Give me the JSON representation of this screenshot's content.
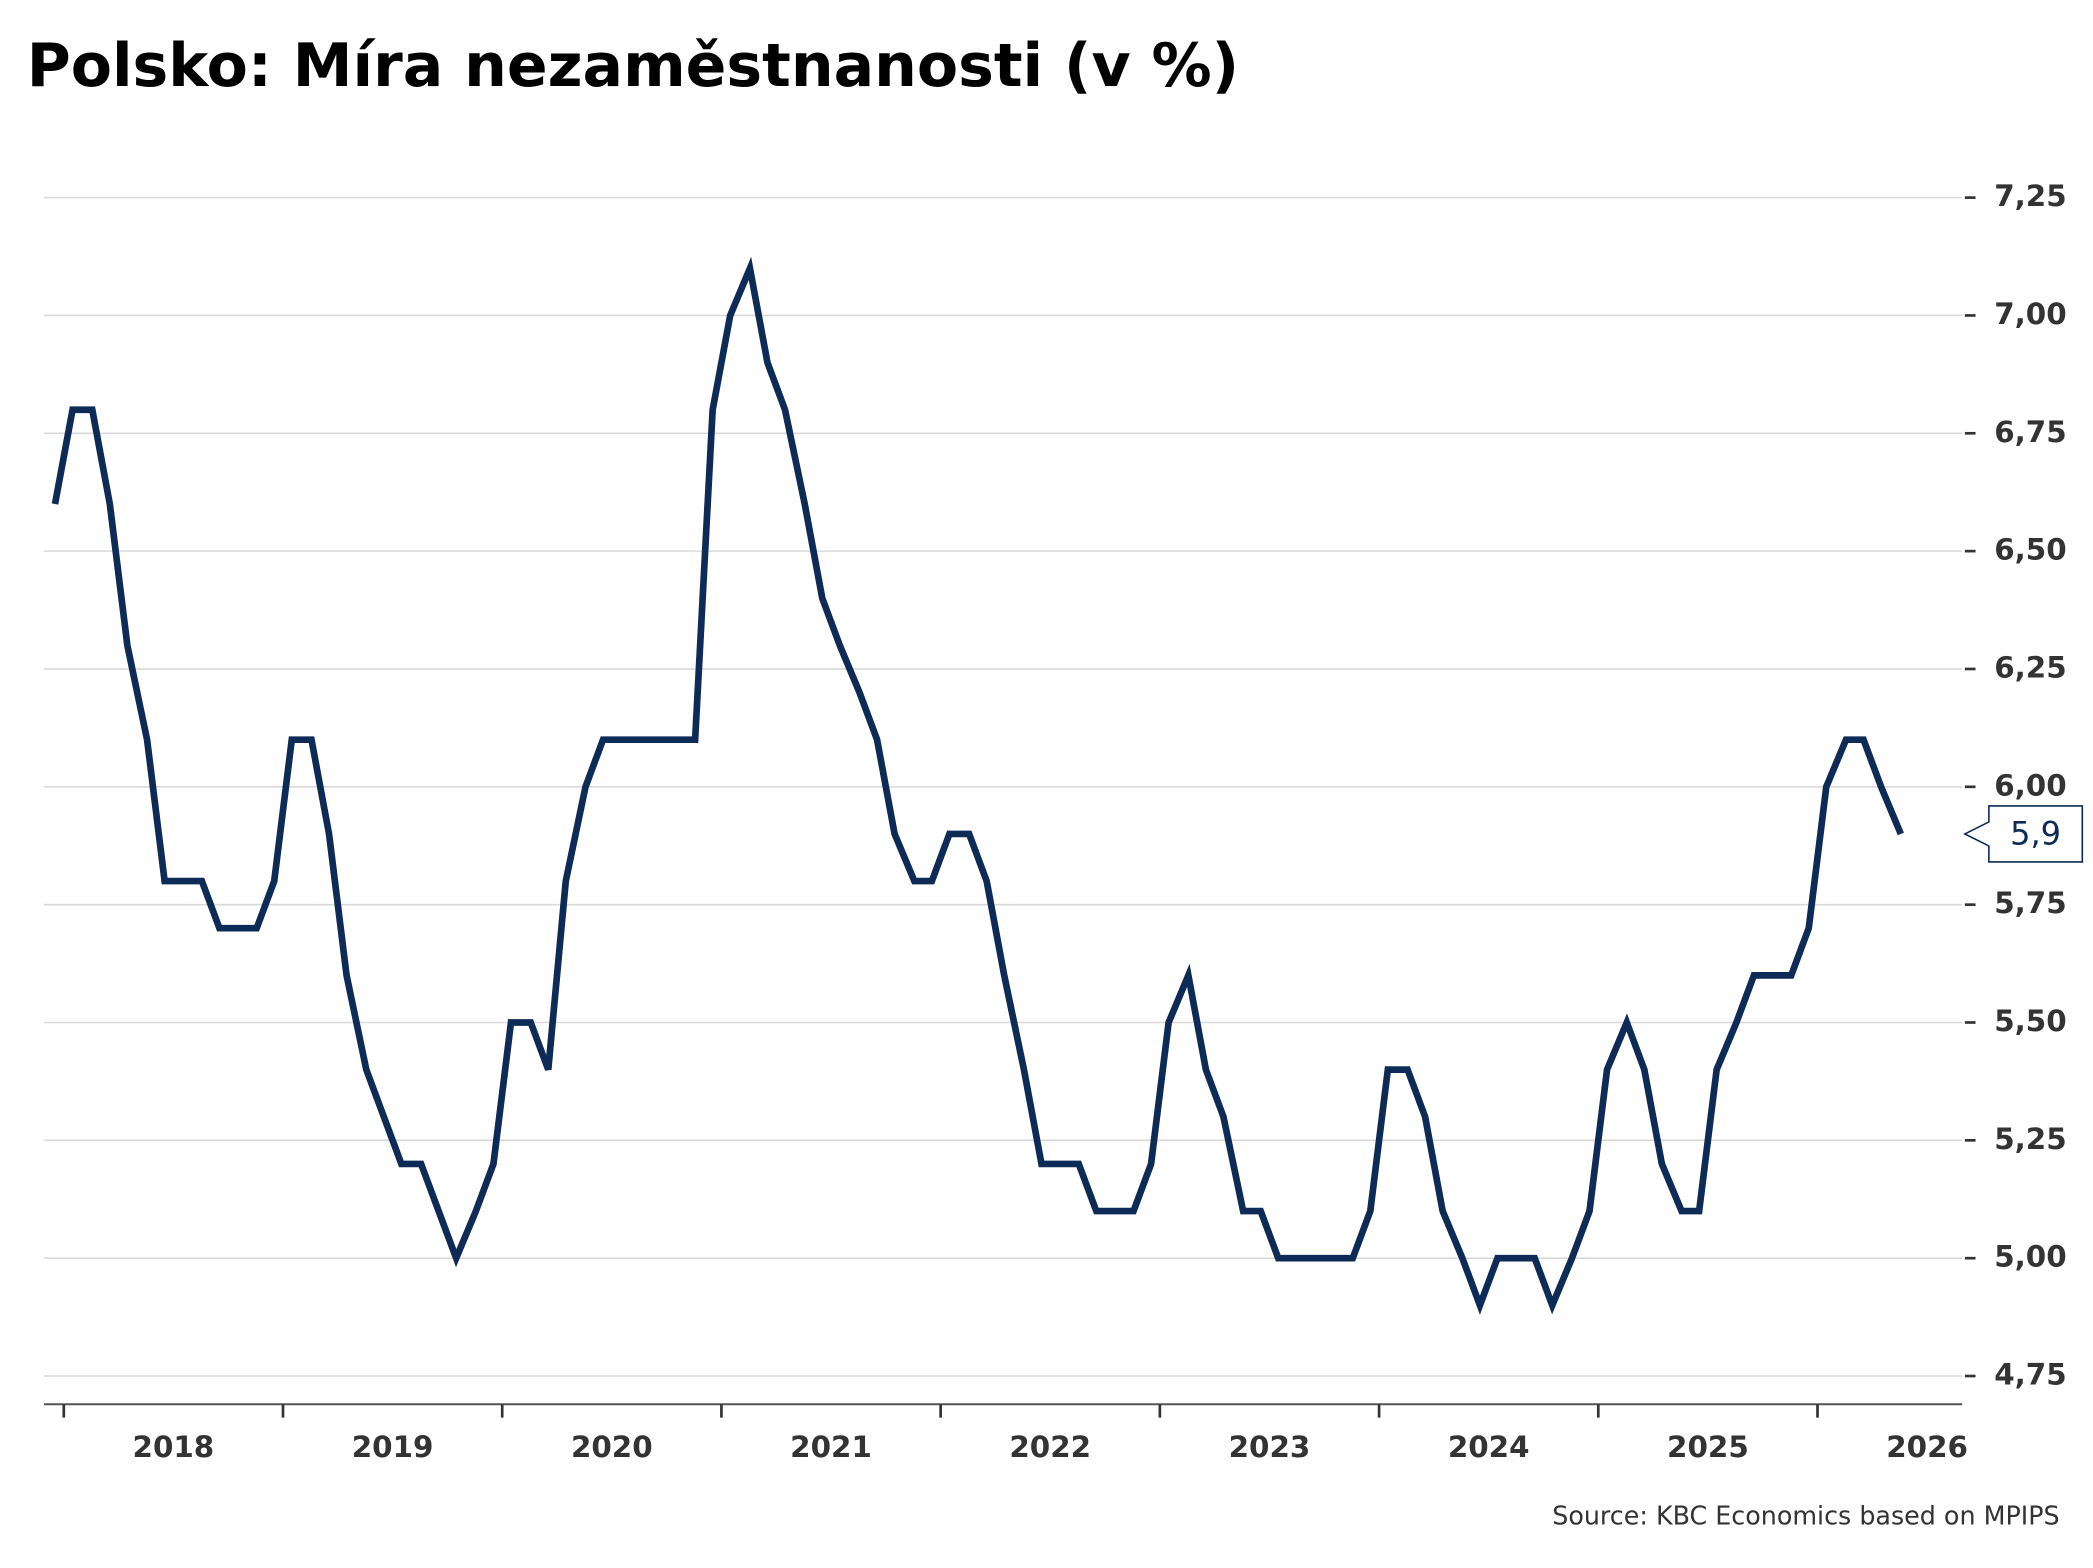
{
  "chart_data": {
    "type": "line",
    "title": "Polsko: Míra nezaměstnanosti (v %)",
    "source": "Source: KBC Economics based on MPIPS",
    "x": [
      2017.96,
      2018.04,
      2018.13,
      2018.21,
      2018.29,
      2018.38,
      2018.46,
      2018.54,
      2018.63,
      2018.71,
      2018.79,
      2018.88,
      2018.96,
      2019.04,
      2019.13,
      2019.21,
      2019.29,
      2019.38,
      2019.46,
      2019.54,
      2019.63,
      2019.71,
      2019.79,
      2019.88,
      2019.96,
      2020.04,
      2020.13,
      2020.21,
      2020.29,
      2020.38,
      2020.46,
      2020.54,
      2020.63,
      2020.71,
      2020.79,
      2020.88,
      2020.96,
      2021.04,
      2021.13,
      2021.21,
      2021.29,
      2021.38,
      2021.46,
      2021.54,
      2021.63,
      2021.71,
      2021.79,
      2021.88,
      2021.96,
      2022.04,
      2022.13,
      2022.21,
      2022.29,
      2022.38,
      2022.46,
      2022.54,
      2022.63,
      2022.71,
      2022.79,
      2022.88,
      2022.96,
      2023.04,
      2023.13,
      2023.21,
      2023.29,
      2023.38,
      2023.46,
      2023.54,
      2023.63,
      2023.71,
      2023.79,
      2023.88,
      2023.96,
      2024.04,
      2024.13,
      2024.21,
      2024.29,
      2024.38,
      2024.46,
      2024.54,
      2024.63,
      2024.71,
      2024.79,
      2024.88,
      2024.96,
      2025.04,
      2025.13,
      2025.21,
      2025.29,
      2025.38,
      2025.46,
      2025.54,
      2025.63,
      2025.71,
      2025.79,
      2025.88,
      2025.96,
      2026.04,
      2026.13,
      2026.21,
      2026.29,
      2026.38
    ],
    "series": [
      {
        "color": "#0d2b56",
        "values": [
          6.6,
          6.8,
          6.8,
          6.6,
          6.3,
          6.1,
          5.8,
          5.8,
          5.8,
          5.7,
          5.7,
          5.7,
          5.8,
          6.1,
          6.1,
          5.9,
          5.6,
          5.4,
          5.3,
          5.2,
          5.2,
          5.1,
          5.0,
          5.1,
          5.2,
          5.5,
          5.5,
          5.4,
          5.8,
          6.0,
          6.1,
          6.1,
          6.1,
          6.1,
          6.1,
          6.1,
          6.8,
          7.0,
          7.1,
          6.9,
          6.8,
          6.6,
          6.4,
          6.3,
          6.2,
          6.1,
          5.9,
          5.8,
          5.8,
          5.9,
          5.9,
          5.8,
          5.6,
          5.4,
          5.2,
          5.2,
          5.2,
          5.1,
          5.1,
          5.1,
          5.2,
          5.5,
          5.6,
          5.4,
          5.3,
          5.1,
          5.1,
          5.0,
          5.0,
          5.0,
          5.0,
          5.0,
          5.1,
          5.4,
          5.4,
          5.3,
          5.1,
          5.0,
          4.9,
          5.0,
          5.0,
          5.0,
          4.9,
          5.0,
          5.1,
          5.4,
          5.5,
          5.4,
          5.2,
          5.1,
          5.1,
          5.4,
          5.5,
          5.6,
          5.6,
          5.6,
          5.7,
          6.0,
          6.1,
          6.1,
          6.0,
          5.9
        ],
        "value_labels": [
          null,
          null,
          null,
          null,
          null,
          null,
          null,
          null,
          null,
          null,
          null,
          null,
          null,
          null,
          null,
          null,
          null,
          null,
          null,
          null,
          null,
          null,
          null,
          null,
          null,
          null,
          null,
          null,
          null,
          null,
          null,
          null,
          null,
          null,
          null,
          null,
          null,
          null,
          null,
          null,
          null,
          null,
          null,
          null,
          null,
          null,
          null,
          null,
          null,
          null,
          null,
          null,
          null,
          null,
          null,
          null,
          null,
          null,
          null,
          null,
          null,
          null,
          null,
          null,
          null,
          null,
          null,
          null,
          null,
          null,
          null,
          null,
          null,
          null,
          null,
          null,
          null,
          null,
          null,
          null,
          null,
          null,
          null,
          null,
          null,
          null,
          null,
          null,
          null,
          null,
          null,
          null,
          null,
          null,
          null,
          null,
          null,
          null,
          null,
          null,
          null,
          "5,9"
        ]
      }
    ],
    "xlim": [
      2017.91,
      2026.66
    ],
    "xticks": [
      2018,
      2019,
      2020,
      2021,
      2022,
      2023,
      2024,
      2025,
      2026
    ],
    "ylim": [
      4.69,
      7.25
    ],
    "yticks": [
      {
        "value": 4.75,
        "label": "4,75"
      },
      {
        "value": 5.0,
        "label": "5,00"
      },
      {
        "value": 5.25,
        "label": "5,25"
      },
      {
        "value": 5.5,
        "label": "5,50"
      },
      {
        "value": 5.75,
        "label": "5,75"
      },
      {
        "value": 6.0,
        "label": "6,00"
      },
      {
        "value": 6.25,
        "label": "6,25"
      },
      {
        "value": 6.5,
        "label": "6,50"
      },
      {
        "value": 6.75,
        "label": "6,75"
      },
      {
        "value": 7.0,
        "label": "7,00"
      },
      {
        "value": 7.25,
        "label": "7,25"
      }
    ],
    "grid": true
  }
}
